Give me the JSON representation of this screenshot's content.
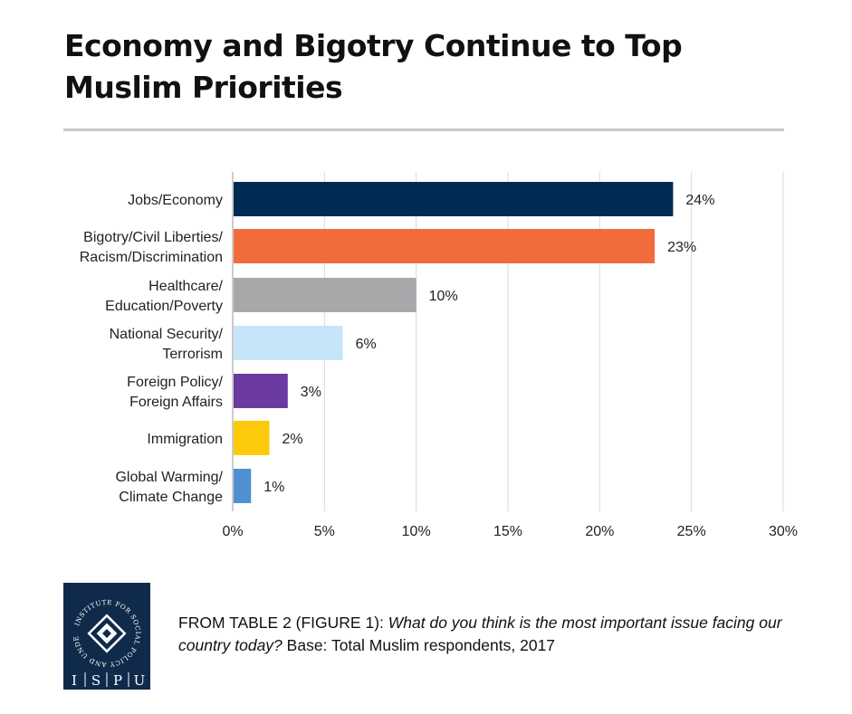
{
  "title": "Economy and Bigotry Continue to Top Muslim Priorities",
  "chart_data": {
    "type": "bar",
    "orientation": "horizontal",
    "categories": [
      [
        "Jobs/Economy"
      ],
      [
        "Bigotry/Civil Liberties/",
        "Racism/Discrimination"
      ],
      [
        "Healthcare/",
        "Education/Poverty"
      ],
      [
        "National Security/",
        "Terrorism"
      ],
      [
        "Foreign Policy/",
        "Foreign Affairs"
      ],
      [
        "Immigration"
      ],
      [
        "Global Warming/",
        "Climate Change"
      ]
    ],
    "values": [
      24,
      23,
      10,
      6,
      3,
      2,
      1
    ],
    "value_labels": [
      "24%",
      "23%",
      "10%",
      "6%",
      "3%",
      "2%",
      "1%"
    ],
    "colors": [
      "#002b53",
      "#f26b3d",
      "#a6a8aa",
      "#c5e6f9",
      "#6b3aa0",
      "#fcca0a",
      "#4f90d1"
    ],
    "xlim": [
      0,
      30
    ],
    "xticks": [
      "0%",
      "5%",
      "10%",
      "15%",
      "20%",
      "25%",
      "30%"
    ],
    "grid": true
  },
  "caption": {
    "lead": "FROM TABLE 2 (FIGURE 1): ",
    "question": "What do you think is the most important issue facing our country today?",
    "base": " Base: Total Muslim respondents, 2017"
  },
  "logo": {
    "ring_text": "INSTITUTE FOR SOCIAL POLICY AND UNDERSTANDING",
    "letters": [
      "I",
      "S",
      "P",
      "U"
    ],
    "color": "#0f2a4a"
  }
}
